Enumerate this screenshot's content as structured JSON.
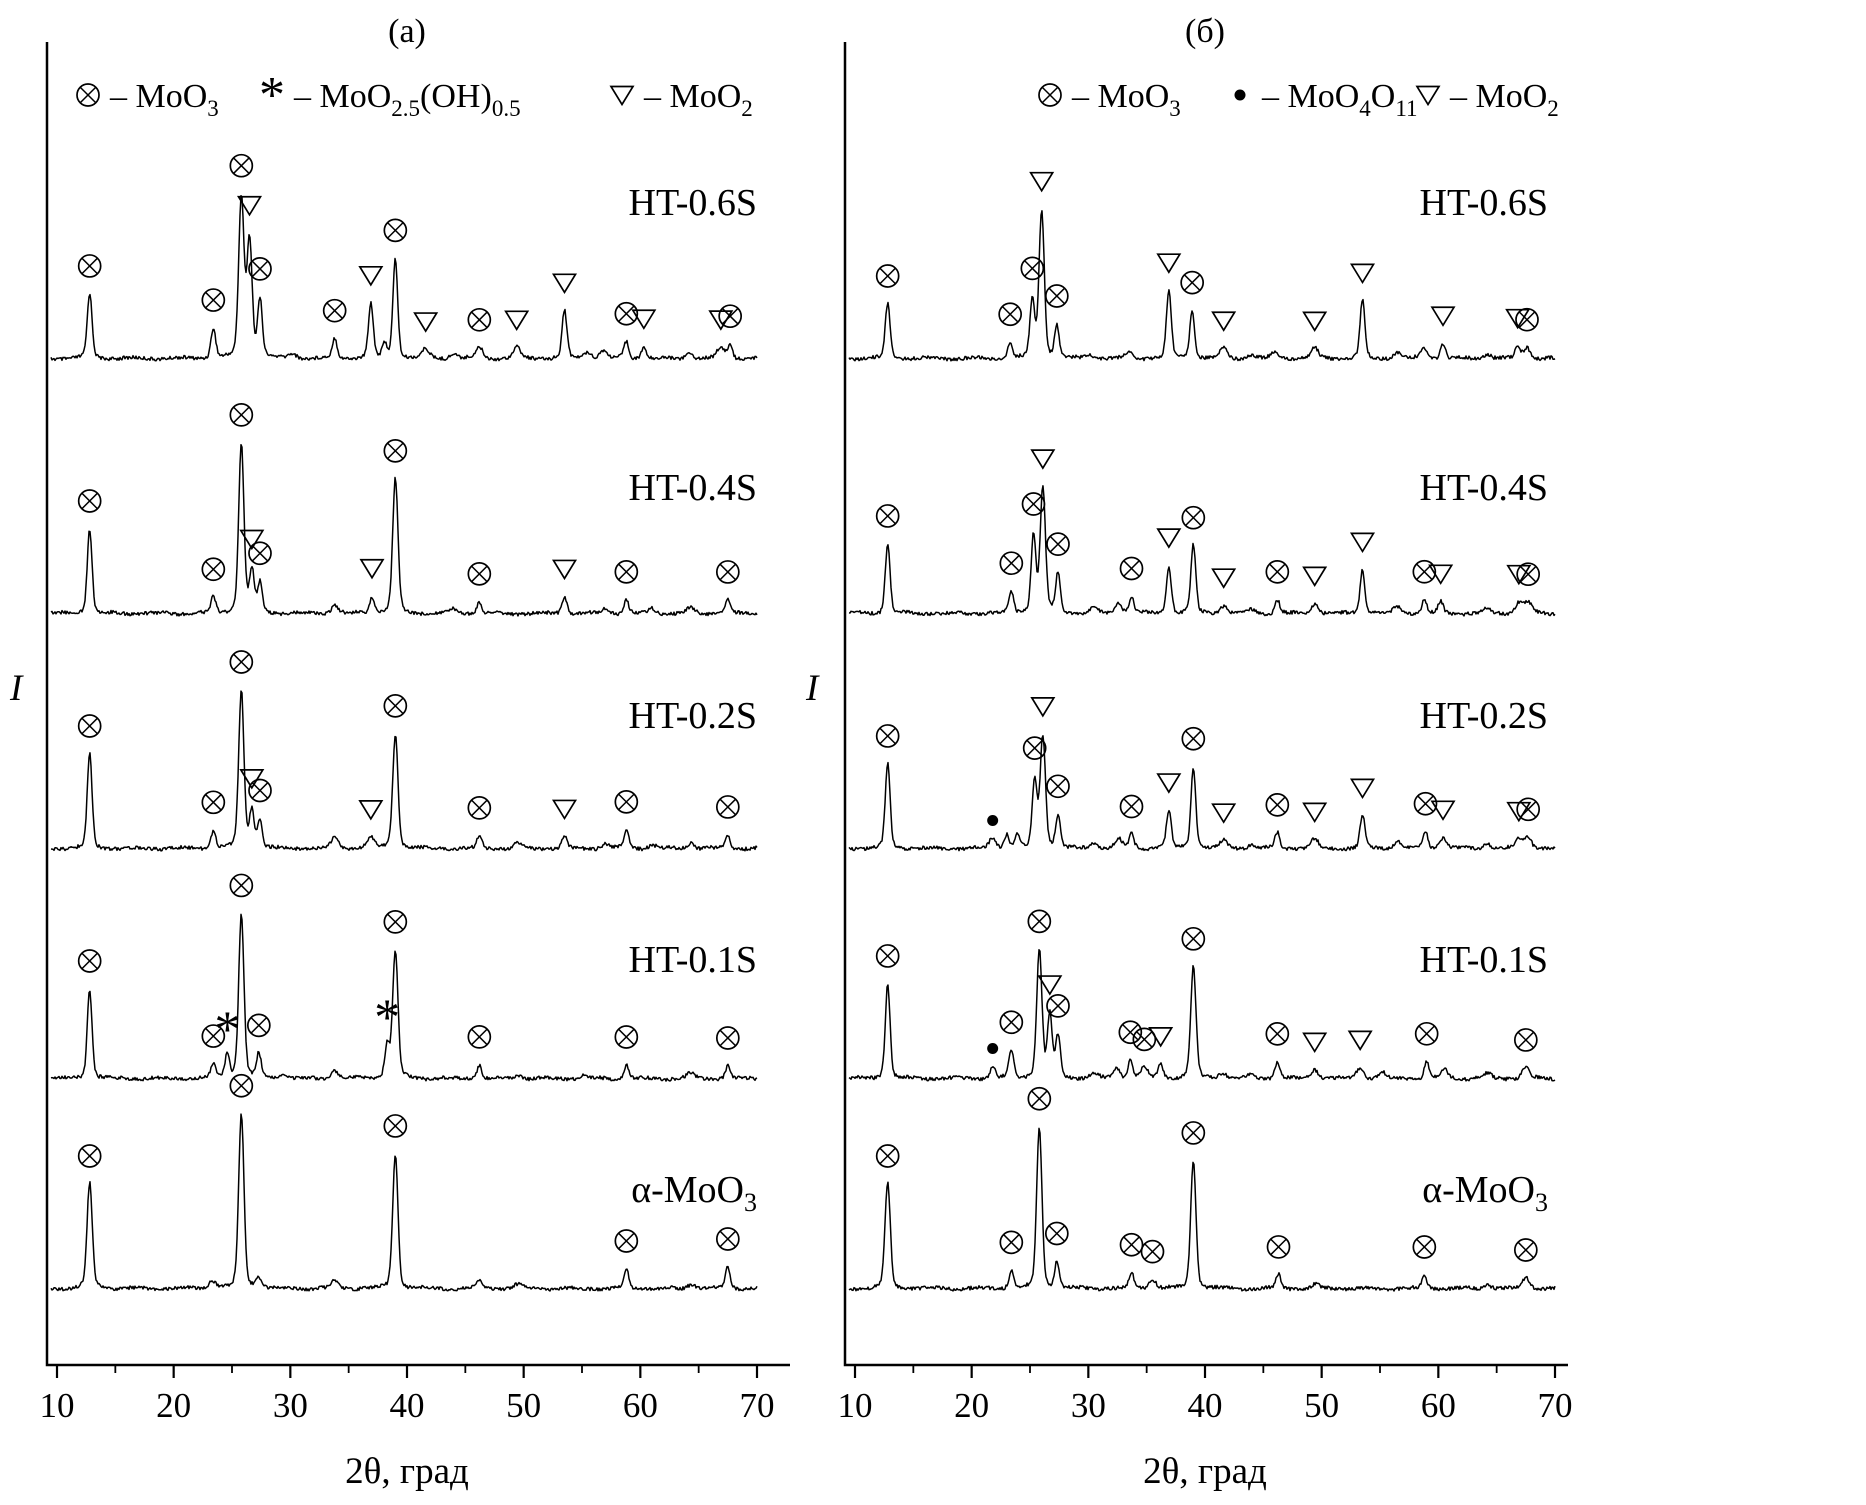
{
  "colors": {
    "ink": "#000000",
    "background": "#ffffff"
  },
  "symbols": {
    "cx": "circle-with-cross",
    "tr": "open-down-triangle",
    "as": "asterisk",
    "dt": "filled-dot"
  },
  "peak_fields": [
    "two_theta_deg",
    "intensity_rel",
    "phase_marker"
  ],
  "chart_data": [
    {
      "type": "line",
      "title": "(а)",
      "xlabel": "2θ, град",
      "ylabel": "I",
      "xlim": [
        10,
        70
      ],
      "xticks": [
        10,
        20,
        30,
        40,
        50,
        60,
        70
      ],
      "xtick_minor_step": 5,
      "legend": [
        {
          "symbol": "cx",
          "label": "– MoO_3"
        },
        {
          "symbol": "as",
          "label": "– MoO_{2.5}(OH)_{0.5}"
        },
        {
          "symbol": "tr",
          "label": "– MoO_2"
        }
      ],
      "series": [
        {
          "name": "HT-0.6S",
          "peaks": [
            [
              12.8,
              65,
              "cx"
            ],
            [
              23.4,
              30,
              "cx"
            ],
            [
              25.8,
              160,
              "cx"
            ],
            [
              26.5,
              118,
              "tr"
            ],
            [
              27.4,
              58,
              "cx"
            ],
            [
              30.2,
              5
            ],
            [
              33.8,
              20,
              "cx"
            ],
            [
              36.9,
              55,
              "tr"
            ],
            [
              38.1,
              14
            ],
            [
              39,
              100,
              "cx"
            ],
            [
              41.6,
              9,
              "tr"
            ],
            [
              44,
              5
            ],
            [
              46.2,
              11,
              "cx"
            ],
            [
              49.4,
              11,
              "tr"
            ],
            [
              53.5,
              48,
              "tr"
            ],
            [
              55.5,
              7
            ],
            [
              56.8,
              8
            ],
            [
              58.8,
              17,
              "cx"
            ],
            [
              60.3,
              12,
              "tr"
            ],
            [
              64.2,
              6
            ],
            [
              66.9,
              11,
              "tr"
            ],
            [
              67.7,
              14,
              "cx"
            ]
          ]
        },
        {
          "name": "HT-0.4S",
          "peaks": [
            [
              12.8,
              85,
              "cx"
            ],
            [
              23.4,
              16,
              "cx"
            ],
            [
              25.8,
              170,
              "cx"
            ],
            [
              26.7,
              42,
              "tr"
            ],
            [
              27.4,
              30,
              "cx"
            ],
            [
              33.8,
              8
            ],
            [
              37,
              17,
              "tr"
            ],
            [
              39,
              135,
              "cx"
            ],
            [
              44,
              4
            ],
            [
              46.2,
              12,
              "cx"
            ],
            [
              53.5,
              17,
              "tr"
            ],
            [
              57,
              5
            ],
            [
              58.8,
              14,
              "cx"
            ],
            [
              61,
              5
            ],
            [
              64.3,
              6
            ],
            [
              67.5,
              14,
              "cx"
            ]
          ]
        },
        {
          "name": "HT-0.2S",
          "peaks": [
            [
              12.8,
              95,
              "cx"
            ],
            [
              23.4,
              18,
              "cx"
            ],
            [
              25.8,
              158,
              "cx"
            ],
            [
              26.7,
              38,
              "tr"
            ],
            [
              27.4,
              28,
              "cx"
            ],
            [
              33.8,
              10
            ],
            [
              36.9,
              11,
              "tr"
            ],
            [
              39,
              115,
              "cx"
            ],
            [
              46.2,
              13,
              "cx"
            ],
            [
              49.5,
              5
            ],
            [
              53.5,
              12,
              "tr"
            ],
            [
              57,
              5
            ],
            [
              58.8,
              19,
              "cx"
            ],
            [
              61,
              4
            ],
            [
              64.3,
              6
            ],
            [
              67.5,
              14,
              "cx"
            ]
          ]
        },
        {
          "name": "HT-0.1S",
          "peaks": [
            [
              12.8,
              90,
              "cx"
            ],
            [
              23.4,
              14,
              "cx"
            ],
            [
              24.6,
              24,
              "as"
            ],
            [
              25.8,
              165,
              "cx"
            ],
            [
              27.3,
              24,
              "cx"
            ],
            [
              29.5,
              5
            ],
            [
              33.8,
              8
            ],
            [
              38.3,
              33,
              "as"
            ],
            [
              39,
              128,
              "cx"
            ],
            [
              46.2,
              14,
              "cx"
            ],
            [
              49.5,
              4
            ],
            [
              55,
              3
            ],
            [
              58.8,
              14,
              "cx"
            ],
            [
              64.3,
              5
            ],
            [
              67.5,
              13,
              "cx"
            ]
          ]
        },
        {
          "name": "α-MoO_3",
          "peaks": [
            [
              12.8,
              105,
              "cx"
            ],
            [
              23.3,
              8
            ],
            [
              25.8,
              175,
              "cx"
            ],
            [
              27.3,
              10
            ],
            [
              33.8,
              7
            ],
            [
              39,
              135,
              "cx"
            ],
            [
              46.2,
              7
            ],
            [
              49.5,
              4
            ],
            [
              58.8,
              20,
              "cx"
            ],
            [
              64.4,
              5
            ],
            [
              67.5,
              22,
              "cx"
            ]
          ]
        }
      ]
    },
    {
      "type": "line",
      "title": "(б)",
      "xlabel": "2θ, град",
      "ylabel": "I",
      "xlim": [
        10,
        70
      ],
      "xticks": [
        10,
        20,
        30,
        40,
        50,
        60,
        70
      ],
      "xtick_minor_step": 5,
      "legend": [
        {
          "symbol": "cx",
          "label": "– MoO_3"
        },
        {
          "symbol": "dt",
          "label": "– MoO_4O_{11}"
        },
        {
          "symbol": "tr",
          "label": "– MoO_2"
        }
      ],
      "series": [
        {
          "name": "HT-0.6S",
          "peaks": [
            [
              12.8,
              55,
              "cx"
            ],
            [
              23.3,
              16,
              "cx"
            ],
            [
              25.2,
              58,
              "cx"
            ],
            [
              26,
              148,
              "tr"
            ],
            [
              27.3,
              33,
              "cx"
            ],
            [
              30,
              4
            ],
            [
              33.5,
              6
            ],
            [
              36.9,
              68,
              "tr"
            ],
            [
              38.9,
              48,
              "cx"
            ],
            [
              41.6,
              10,
              "tr"
            ],
            [
              44,
              4
            ],
            [
              46,
              6
            ],
            [
              49.4,
              10,
              "tr"
            ],
            [
              53.5,
              58,
              "tr"
            ],
            [
              56.5,
              6
            ],
            [
              58.8,
              10
            ],
            [
              60.4,
              15,
              "tr"
            ],
            [
              64.2,
              5
            ],
            [
              66.8,
              12,
              "tr"
            ],
            [
              67.6,
              11,
              "cx"
            ]
          ]
        },
        {
          "name": "HT-0.4S",
          "peaks": [
            [
              12.8,
              70,
              "cx"
            ],
            [
              23.4,
              22,
              "cx"
            ],
            [
              25.3,
              78,
              "cx"
            ],
            [
              26.1,
              125,
              "tr"
            ],
            [
              27.4,
              40,
              "cx"
            ],
            [
              30.5,
              5
            ],
            [
              32.6,
              10
            ],
            [
              33.7,
              17,
              "cx"
            ],
            [
              36.9,
              48,
              "tr"
            ],
            [
              39,
              68,
              "cx"
            ],
            [
              41.6,
              8,
              "tr"
            ],
            [
              44,
              4
            ],
            [
              46.2,
              14,
              "cx"
            ],
            [
              49.4,
              10,
              "tr"
            ],
            [
              53.5,
              44,
              "tr"
            ],
            [
              56.5,
              7
            ],
            [
              58.8,
              14,
              "cx"
            ],
            [
              60.2,
              12,
              "tr"
            ],
            [
              64.2,
              5
            ],
            [
              66.9,
              11,
              "tr"
            ],
            [
              67.7,
              11,
              "cx"
            ]
          ]
        },
        {
          "name": "HT-0.2S",
          "peaks": [
            [
              12.8,
              85,
              "cx"
            ],
            [
              21.8,
              10,
              "dt"
            ],
            [
              23,
              14
            ],
            [
              23.9,
              14
            ],
            [
              25.4,
              68,
              "cx"
            ],
            [
              26.1,
              112,
              "tr"
            ],
            [
              27.4,
              33,
              "cx"
            ],
            [
              30.5,
              5
            ],
            [
              32.6,
              9
            ],
            [
              33.7,
              14,
              "cx"
            ],
            [
              36.9,
              38,
              "tr"
            ],
            [
              39,
              82,
              "cx"
            ],
            [
              41.6,
              8,
              "tr"
            ],
            [
              44,
              4
            ],
            [
              46.2,
              16,
              "cx"
            ],
            [
              49.4,
              9,
              "tr"
            ],
            [
              53.5,
              33,
              "tr"
            ],
            [
              56.5,
              7
            ],
            [
              58.9,
              17,
              "cx"
            ],
            [
              60.4,
              11,
              "tr"
            ],
            [
              64.2,
              5
            ],
            [
              66.9,
              9,
              "tr"
            ],
            [
              67.7,
              11,
              "cx"
            ]
          ]
        },
        {
          "name": "HT-0.1S",
          "peaks": [
            [
              12.8,
              95,
              "cx"
            ],
            [
              21.8,
              12,
              "dt"
            ],
            [
              23.4,
              28,
              "cx"
            ],
            [
              25.8,
              128,
              "cx"
            ],
            [
              26.7,
              62,
              "tr"
            ],
            [
              27.4,
              42,
              "cx"
            ],
            [
              30.5,
              5
            ],
            [
              32.4,
              10
            ],
            [
              33.6,
              18,
              "cx"
            ],
            [
              34.8,
              11,
              "cx"
            ],
            [
              36.2,
              14,
              "tr"
            ],
            [
              39,
              112,
              "cx"
            ],
            [
              41.5,
              6
            ],
            [
              44,
              4
            ],
            [
              46.2,
              17,
              "cx"
            ],
            [
              49.4,
              9,
              "tr"
            ],
            [
              53.3,
              11,
              "tr"
            ],
            [
              55.2,
              6
            ],
            [
              59,
              17,
              "cx"
            ],
            [
              60.5,
              9
            ],
            [
              64.2,
              5
            ],
            [
              67.5,
              11,
              "cx"
            ]
          ]
        },
        {
          "name": "α-MoO_3",
          "peaks": [
            [
              12.8,
              105,
              "cx"
            ],
            [
              23.4,
              18,
              "cx"
            ],
            [
              25.8,
              162,
              "cx"
            ],
            [
              27.3,
              26,
              "cx"
            ],
            [
              33.7,
              16,
              "cx"
            ],
            [
              35.5,
              9,
              "cx"
            ],
            [
              39,
              128,
              "cx"
            ],
            [
              46.3,
              14,
              "cx"
            ],
            [
              49.5,
              4
            ],
            [
              58.8,
              14,
              "cx"
            ],
            [
              64.3,
              4
            ],
            [
              67.5,
              11,
              "cx"
            ]
          ]
        }
      ]
    }
  ]
}
